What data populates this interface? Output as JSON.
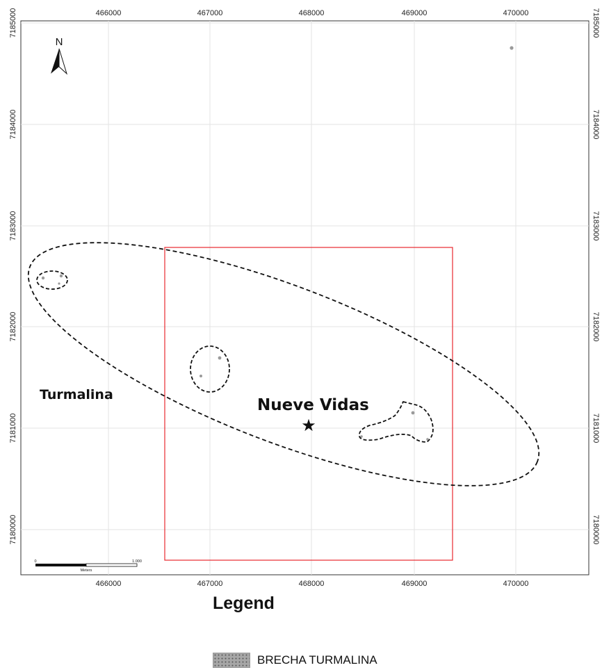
{
  "map": {
    "x_ticks": [
      "466000",
      "467000",
      "468000",
      "469000",
      "470000"
    ],
    "y_ticks": [
      "7185000",
      "7184000",
      "7183000",
      "7182000",
      "7181000",
      "7180000"
    ],
    "north_label": "N",
    "labels": {
      "turmalina": "Turmalina",
      "nueve_vidas": "Nueve Vidas"
    },
    "scale_bar": {
      "start": "0",
      "end": "1.000",
      "unit": "Meters"
    },
    "colors": {
      "study_area": "#e8282e",
      "grid": "#e3e3e3",
      "outline": "#111111",
      "outcrop": "#9a9a9a"
    }
  },
  "legend": {
    "title": "Legend",
    "items": [
      {
        "label": "BRECHA TURMALINA",
        "pattern": "dotted-gray"
      }
    ]
  }
}
